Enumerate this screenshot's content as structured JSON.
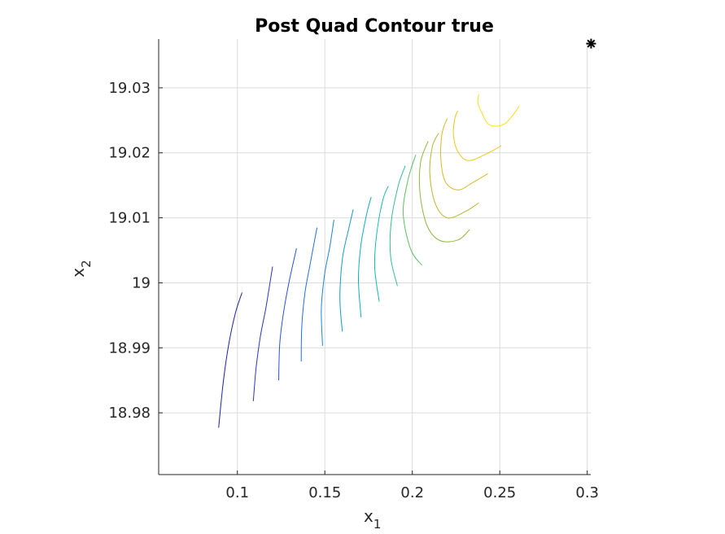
{
  "chart_data": {
    "type": "contour",
    "title": "Post Quad Contour true",
    "xlabel": {
      "base": "x",
      "subscript": "1"
    },
    "ylabel": {
      "base": "x",
      "subscript": "2"
    },
    "xlim": [
      0.055,
      0.302
    ],
    "ylim": [
      18.9705,
      19.0375
    ],
    "xticks": [
      0.1,
      0.15,
      0.2,
      0.25,
      0.3
    ],
    "xtick_labels": [
      "0.1",
      "0.15",
      "0.2",
      "0.25",
      "0.3"
    ],
    "yticks": [
      18.98,
      18.99,
      19.0,
      19.01,
      19.02,
      19.03
    ],
    "ytick_labels": [
      "18.98",
      "18.99",
      "19",
      "19.01",
      "19.02",
      "19.03"
    ],
    "grid": true,
    "colormap": "parula",
    "levels": [
      {
        "color": "#1f1fa8",
        "points": [
          [
            0.0893,
            18.9777
          ],
          [
            0.0918,
            18.9844
          ],
          [
            0.0949,
            18.9903
          ],
          [
            0.0989,
            18.9954
          ],
          [
            0.1027,
            18.9985
          ]
        ]
      },
      {
        "color": "#2a32c8",
        "points": [
          [
            0.1091,
            18.9818
          ],
          [
            0.1107,
            18.9869
          ],
          [
            0.1131,
            18.9917
          ],
          [
            0.1164,
            18.9963
          ],
          [
            0.1201,
            19.0025
          ]
        ]
      },
      {
        "color": "#2553e0",
        "points": [
          [
            0.1236,
            18.985
          ],
          [
            0.1242,
            18.9906
          ],
          [
            0.1263,
            18.9953
          ],
          [
            0.1295,
            19.0001
          ],
          [
            0.1338,
            19.0053
          ]
        ]
      },
      {
        "color": "#1f6ee8",
        "points": [
          [
            0.1365,
            18.9879
          ],
          [
            0.1368,
            18.9933
          ],
          [
            0.1386,
            18.9984
          ],
          [
            0.1416,
            19.0029
          ],
          [
            0.1455,
            19.0085
          ]
        ]
      },
      {
        "color": "#1886d8",
        "points": [
          [
            0.1487,
            18.9903
          ],
          [
            0.148,
            18.996
          ],
          [
            0.1498,
            19.0012
          ],
          [
            0.1528,
            19.0055
          ],
          [
            0.1552,
            19.0097
          ]
        ]
      },
      {
        "color": "#129bd0",
        "points": [
          [
            0.16,
            18.9925
          ],
          [
            0.1586,
            18.9977
          ],
          [
            0.1601,
            19.0038
          ],
          [
            0.1638,
            19.0085
          ],
          [
            0.1662,
            19.0113
          ]
        ]
      },
      {
        "color": "#0aaec8",
        "points": [
          [
            0.1707,
            18.9947
          ],
          [
            0.1692,
            19.0005
          ],
          [
            0.1706,
            19.0058
          ],
          [
            0.1741,
            19.0108
          ],
          [
            0.1765,
            19.0132
          ]
        ]
      },
      {
        "color": "#12bab0",
        "points": [
          [
            0.1811,
            18.9971
          ],
          [
            0.1785,
            19.0024
          ],
          [
            0.1797,
            19.0077
          ],
          [
            0.1832,
            19.0128
          ],
          [
            0.1863,
            19.0149
          ]
        ]
      },
      {
        "color": "#30c090",
        "points": [
          [
            0.1915,
            18.9995
          ],
          [
            0.1876,
            19.004
          ],
          [
            0.188,
            19.0095
          ],
          [
            0.192,
            19.015
          ],
          [
            0.196,
            19.018
          ]
        ]
      },
      {
        "color": "#5cc060",
        "points": [
          [
            0.2055,
            19.0027
          ],
          [
            0.199,
            19.0052
          ],
          [
            0.1948,
            19.0107
          ],
          [
            0.1975,
            19.0158
          ],
          [
            0.202,
            19.0197
          ]
        ]
      },
      {
        "color": "#8cbc3c",
        "points": [
          [
            0.2328,
            19.0082
          ],
          [
            0.2262,
            19.0066
          ],
          [
            0.2158,
            19.0065
          ],
          [
            0.2086,
            19.0087
          ],
          [
            0.2045,
            19.0135
          ],
          [
            0.2047,
            19.0185
          ],
          [
            0.209,
            19.0218
          ]
        ]
      },
      {
        "color": "#b8b828",
        "points": [
          [
            0.238,
            19.0123
          ],
          [
            0.2305,
            19.011
          ],
          [
            0.22,
            19.01
          ],
          [
            0.2131,
            19.0122
          ],
          [
            0.21,
            19.0168
          ],
          [
            0.2115,
            19.021
          ],
          [
            0.215,
            19.023
          ]
        ]
      },
      {
        "color": "#d8bc28",
        "points": [
          [
            0.2432,
            19.0168
          ],
          [
            0.235,
            19.0155
          ],
          [
            0.2262,
            19.0143
          ],
          [
            0.219,
            19.0155
          ],
          [
            0.2163,
            19.019
          ],
          [
            0.217,
            19.023
          ],
          [
            0.22,
            19.0253
          ]
        ]
      },
      {
        "color": "#f0c81e",
        "points": [
          [
            0.2509,
            19.0211
          ],
          [
            0.242,
            19.0198
          ],
          [
            0.232,
            19.0188
          ],
          [
            0.226,
            19.0202
          ],
          [
            0.2235,
            19.0228
          ],
          [
            0.2243,
            19.0253
          ],
          [
            0.226,
            19.0265
          ]
        ]
      },
      {
        "color": "#f7e01c",
        "points": [
          [
            0.2612,
            19.0272
          ],
          [
            0.253,
            19.0245
          ],
          [
            0.2442,
            19.0243
          ],
          [
            0.2395,
            19.0263
          ],
          [
            0.2375,
            19.0278
          ],
          [
            0.238,
            19.029
          ]
        ]
      }
    ],
    "marker": {
      "x": 0.3022,
      "y": 19.0368,
      "color": "#000000",
      "shape": "asterisk"
    }
  }
}
